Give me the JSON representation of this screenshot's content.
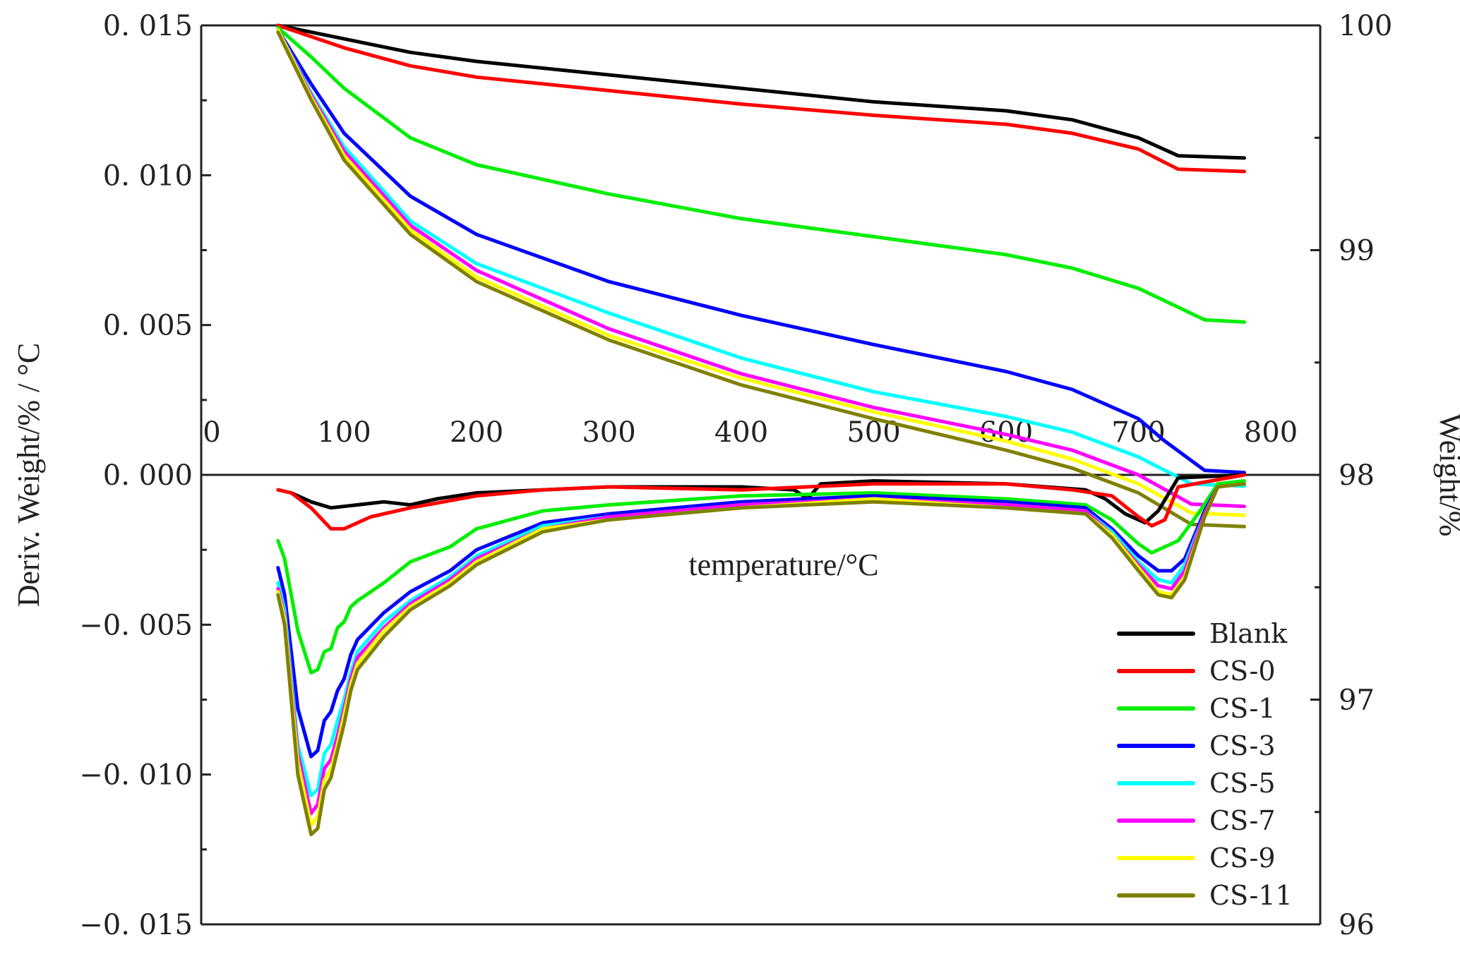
{
  "chart_data": {
    "type": "line",
    "title": "",
    "xlabel": "temperature/°C",
    "ylabel_left": "Deriv. Weight/% / °C",
    "ylabel_right": "Weight/%",
    "xlim": [
      0,
      800
    ],
    "ylim_left": [
      -0.015,
      0.015
    ],
    "ylim_right": [
      96,
      100
    ],
    "x_ticks": [
      "0",
      "100",
      "200",
      "300",
      "400",
      "500",
      "600",
      "700",
      "800"
    ],
    "y_left_ticks": [
      {
        "value": 0.015,
        "label": "0. 015"
      },
      {
        "value": 0.01,
        "label": "0. 010"
      },
      {
        "value": 0.005,
        "label": "0. 005"
      },
      {
        "value": 0.0,
        "label": "0. 000"
      },
      {
        "value": -0.005,
        "label": "−0. 005"
      },
      {
        "value": -0.01,
        "label": "−0. 010"
      },
      {
        "value": -0.015,
        "label": "−0. 015"
      }
    ],
    "y_right_ticks": [
      {
        "value": 100,
        "label": "100"
      },
      {
        "value": 99,
        "label": "99"
      },
      {
        "value": 98,
        "label": "98"
      },
      {
        "value": 97,
        "label": "97"
      },
      {
        "value": 96,
        "label": "96"
      }
    ],
    "legend_position": "bottom-right",
    "weight_series": [
      {
        "name": "Blank",
        "color": "#000000",
        "x": [
          50,
          100,
          150,
          200,
          300,
          400,
          500,
          600,
          650,
          700,
          730,
          780
        ],
        "y": [
          100,
          99.94,
          99.88,
          99.84,
          99.78,
          99.72,
          99.66,
          99.62,
          99.58,
          99.5,
          99.42,
          99.41
        ]
      },
      {
        "name": "CS-0",
        "color": "#ff0000",
        "x": [
          50,
          100,
          150,
          200,
          300,
          400,
          500,
          600,
          650,
          700,
          730,
          780
        ],
        "y": [
          100,
          99.9,
          99.82,
          99.77,
          99.71,
          99.65,
          99.6,
          99.56,
          99.52,
          99.45,
          99.36,
          99.35
        ]
      },
      {
        "name": "CS-1",
        "color": "#00ee00",
        "x": [
          50,
          75,
          100,
          150,
          200,
          300,
          400,
          500,
          600,
          650,
          700,
          750,
          780
        ],
        "y": [
          99.99,
          99.86,
          99.72,
          99.5,
          99.38,
          99.25,
          99.14,
          99.06,
          98.98,
          98.92,
          98.83,
          98.69,
          98.68
        ]
      },
      {
        "name": "CS-3",
        "color": "#0000ff",
        "x": [
          50,
          75,
          100,
          150,
          200,
          300,
          400,
          500,
          600,
          650,
          700,
          720,
          750,
          780
        ],
        "y": [
          99.98,
          99.74,
          99.52,
          99.24,
          99.07,
          98.86,
          98.71,
          98.58,
          98.46,
          98.38,
          98.25,
          98.15,
          98.02,
          98.01
        ]
      },
      {
        "name": "CS-5",
        "color": "#00ffff",
        "x": [
          50,
          75,
          100,
          150,
          200,
          300,
          400,
          500,
          600,
          650,
          700,
          740,
          780
        ],
        "y": [
          99.98,
          99.7,
          99.46,
          99.13,
          98.94,
          98.72,
          98.52,
          98.37,
          98.26,
          98.19,
          98.08,
          97.96,
          97.95
        ]
      },
      {
        "name": "CS-7",
        "color": "#ff00ff",
        "x": [
          50,
          75,
          100,
          150,
          200,
          300,
          400,
          500,
          600,
          650,
          700,
          740,
          780
        ],
        "y": [
          99.98,
          99.69,
          99.44,
          99.11,
          98.91,
          98.65,
          98.45,
          98.3,
          98.18,
          98.11,
          98.0,
          97.87,
          97.86
        ]
      },
      {
        "name": "CS-9",
        "color": "#ffff00",
        "x": [
          50,
          75,
          100,
          150,
          200,
          300,
          400,
          500,
          600,
          650,
          700,
          740,
          780
        ],
        "y": [
          99.98,
          99.68,
          99.42,
          99.09,
          98.88,
          98.62,
          98.43,
          98.28,
          98.15,
          98.07,
          97.96,
          97.83,
          97.82
        ]
      },
      {
        "name": "CS-11",
        "color": "#808000",
        "x": [
          50,
          75,
          100,
          150,
          200,
          300,
          400,
          500,
          600,
          650,
          700,
          740,
          780
        ],
        "y": [
          99.97,
          99.67,
          99.4,
          99.07,
          98.86,
          98.6,
          98.4,
          98.25,
          98.11,
          98.03,
          97.92,
          97.78,
          97.77
        ]
      }
    ],
    "deriv_series": [
      {
        "name": "Blank",
        "color": "#000000",
        "x": [
          50,
          60,
          75,
          90,
          110,
          130,
          150,
          170,
          200,
          250,
          300,
          400,
          440,
          450,
          460,
          500,
          600,
          660,
          675,
          690,
          705,
          715,
          730,
          780
        ],
        "y": [
          -0.0005,
          -0.0006,
          -0.0009,
          -0.0011,
          -0.001,
          -0.0009,
          -0.001,
          -0.0008,
          -0.0006,
          -0.0005,
          -0.0004,
          -0.0004,
          -0.0005,
          -0.0008,
          -0.0003,
          -0.0002,
          -0.0003,
          -0.0005,
          -0.0008,
          -0.0013,
          -0.0016,
          -0.0012,
          -0.0001,
          0.0
        ]
      },
      {
        "name": "CS-0",
        "color": "#ff0000",
        "x": [
          50,
          60,
          75,
          90,
          100,
          120,
          150,
          200,
          250,
          300,
          400,
          500,
          600,
          650,
          680,
          700,
          710,
          720,
          730,
          780
        ],
        "y": [
          -0.0005,
          -0.0006,
          -0.0011,
          -0.0018,
          -0.0018,
          -0.0014,
          -0.0011,
          -0.0007,
          -0.0005,
          -0.0004,
          -0.0005,
          -0.0003,
          -0.0003,
          -0.0005,
          -0.0007,
          -0.0014,
          -0.0017,
          -0.0015,
          -0.0004,
          0.0
        ]
      },
      {
        "name": "CS-1",
        "color": "#00ee00",
        "x": [
          50,
          55,
          65,
          75,
          80,
          85,
          90,
          95,
          100,
          105,
          110,
          130,
          150,
          180,
          200,
          250,
          300,
          400,
          500,
          600,
          660,
          680,
          700,
          710,
          720,
          730,
          745,
          760,
          780
        ],
        "y": [
          -0.0022,
          -0.0028,
          -0.0052,
          -0.0066,
          -0.0065,
          -0.0059,
          -0.0058,
          -0.0051,
          -0.0049,
          -0.0044,
          -0.0042,
          -0.0036,
          -0.0029,
          -0.0024,
          -0.0018,
          -0.0012,
          -0.001,
          -0.0007,
          -0.0006,
          -0.0008,
          -0.001,
          -0.0015,
          -0.0023,
          -0.0026,
          -0.0024,
          -0.0022,
          -0.0013,
          -0.0003,
          -0.0002
        ]
      },
      {
        "name": "CS-3",
        "color": "#0000ff",
        "x": [
          50,
          55,
          65,
          75,
          80,
          85,
          90,
          95,
          100,
          105,
          110,
          130,
          150,
          180,
          200,
          250,
          300,
          400,
          500,
          600,
          660,
          680,
          700,
          715,
          725,
          735,
          750,
          760,
          780
        ],
        "y": [
          -0.0031,
          -0.004,
          -0.0078,
          -0.0094,
          -0.0092,
          -0.0082,
          -0.0079,
          -0.0072,
          -0.0068,
          -0.006,
          -0.0055,
          -0.0046,
          -0.0039,
          -0.0032,
          -0.0025,
          -0.0016,
          -0.0013,
          -0.0009,
          -0.0007,
          -0.0009,
          -0.0011,
          -0.0018,
          -0.0027,
          -0.0032,
          -0.0032,
          -0.0028,
          -0.0012,
          -0.0004,
          -0.0003
        ]
      },
      {
        "name": "CS-5",
        "color": "#00ffff",
        "x": [
          50,
          55,
          65,
          75,
          80,
          85,
          90,
          95,
          100,
          105,
          110,
          130,
          150,
          180,
          200,
          250,
          300,
          400,
          500,
          600,
          660,
          680,
          700,
          715,
          725,
          735,
          750,
          760,
          780
        ],
        "y": [
          -0.0036,
          -0.0045,
          -0.009,
          -0.0107,
          -0.0105,
          -0.0093,
          -0.009,
          -0.0082,
          -0.0075,
          -0.0066,
          -0.0059,
          -0.0049,
          -0.0042,
          -0.0034,
          -0.0027,
          -0.0017,
          -0.0014,
          -0.001,
          -0.0008,
          -0.001,
          -0.0012,
          -0.0019,
          -0.0029,
          -0.0035,
          -0.0036,
          -0.003,
          -0.0013,
          -0.0004,
          -0.0003
        ]
      },
      {
        "name": "CS-7",
        "color": "#ff00ff",
        "x": [
          50,
          55,
          65,
          75,
          80,
          85,
          90,
          95,
          100,
          105,
          110,
          130,
          150,
          180,
          200,
          250,
          300,
          400,
          500,
          600,
          660,
          680,
          700,
          715,
          725,
          735,
          750,
          760,
          780
        ],
        "y": [
          -0.0038,
          -0.0047,
          -0.0093,
          -0.0113,
          -0.011,
          -0.0098,
          -0.0095,
          -0.0087,
          -0.0078,
          -0.0068,
          -0.0061,
          -0.0051,
          -0.0043,
          -0.0035,
          -0.0028,
          -0.0018,
          -0.0014,
          -0.001,
          -0.0008,
          -0.001,
          -0.0012,
          -0.002,
          -0.003,
          -0.0037,
          -0.0038,
          -0.0032,
          -0.0013,
          -0.0004,
          -0.0003
        ]
      },
      {
        "name": "CS-9",
        "color": "#ffff00",
        "x": [
          50,
          55,
          65,
          75,
          80,
          85,
          90,
          95,
          100,
          105,
          110,
          130,
          150,
          180,
          200,
          250,
          300,
          400,
          500,
          600,
          660,
          680,
          700,
          715,
          725,
          735,
          750,
          760,
          780
        ],
        "y": [
          -0.0039,
          -0.0048,
          -0.0096,
          -0.0117,
          -0.0114,
          -0.0102,
          -0.0098,
          -0.009,
          -0.008,
          -0.007,
          -0.0063,
          -0.0052,
          -0.0044,
          -0.0036,
          -0.0029,
          -0.0018,
          -0.0015,
          -0.0011,
          -0.0008,
          -0.0011,
          -0.0013,
          -0.002,
          -0.0031,
          -0.0039,
          -0.004,
          -0.0034,
          -0.0014,
          -0.0004,
          -0.0003
        ]
      },
      {
        "name": "CS-11",
        "color": "#808000",
        "x": [
          50,
          55,
          65,
          75,
          80,
          85,
          90,
          95,
          100,
          105,
          110,
          130,
          150,
          180,
          200,
          250,
          300,
          400,
          500,
          600,
          660,
          680,
          700,
          715,
          725,
          735,
          750,
          760,
          780
        ],
        "y": [
          -0.004,
          -0.005,
          -0.01,
          -0.012,
          -0.0118,
          -0.0105,
          -0.0101,
          -0.0092,
          -0.0083,
          -0.0072,
          -0.0065,
          -0.0054,
          -0.0045,
          -0.0037,
          -0.003,
          -0.0019,
          -0.0015,
          -0.0011,
          -0.0009,
          -0.0011,
          -0.0013,
          -0.0021,
          -0.0032,
          -0.004,
          -0.0041,
          -0.0035,
          -0.0014,
          -0.0004,
          -0.0003
        ]
      }
    ]
  }
}
